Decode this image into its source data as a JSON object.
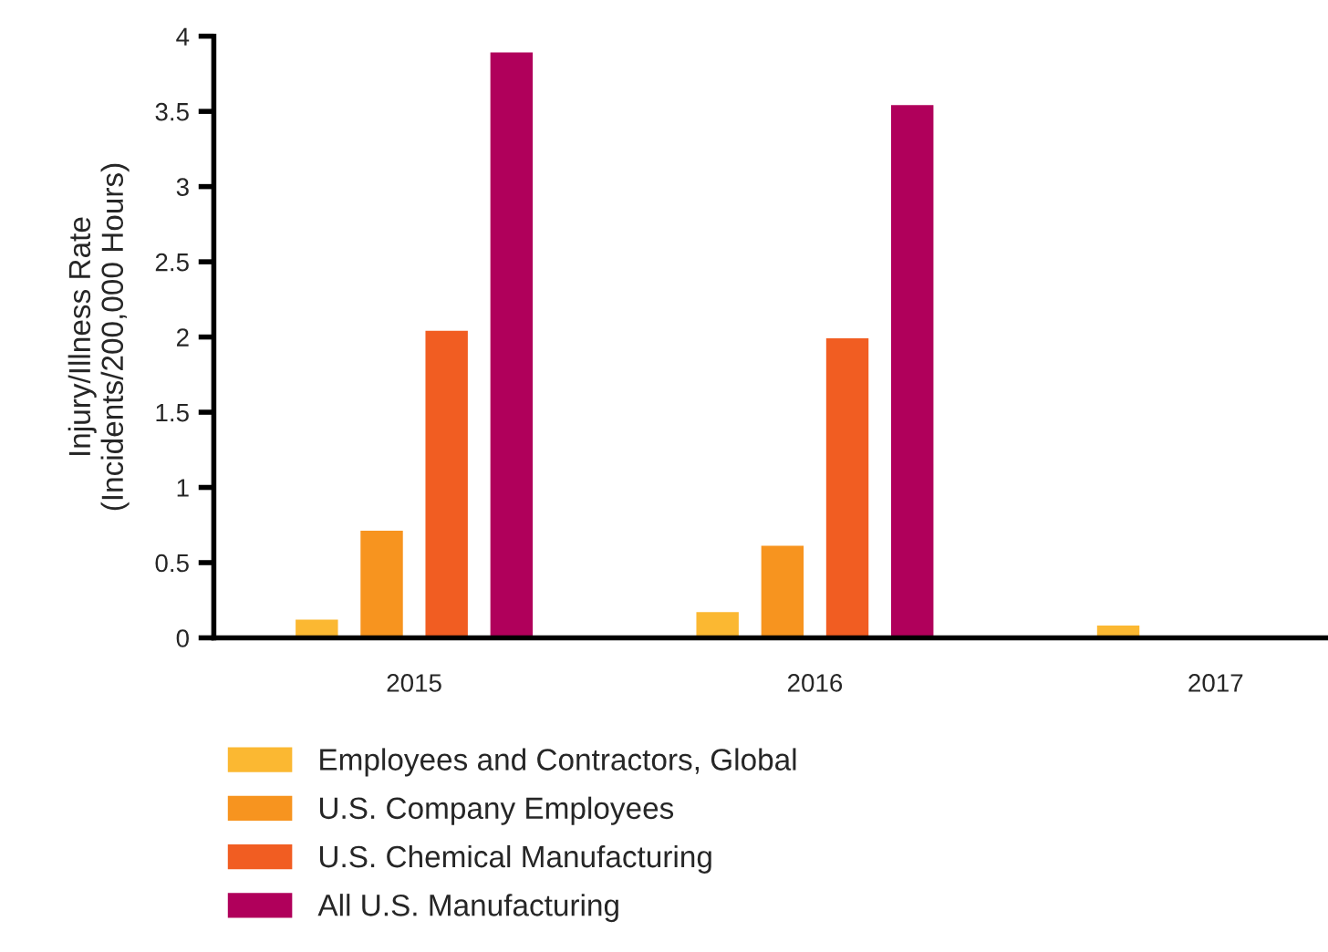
{
  "chart_data": {
    "type": "bar",
    "ylabel": "Injury/Illness Rate\n(Incidents/200,000 Hours)",
    "categories": [
      "2015",
      "2016",
      "2017"
    ],
    "series": [
      {
        "name": "Employees and Contractors, Global",
        "color": "#fbb832",
        "values": [
          0.13,
          0.18,
          0.09
        ]
      },
      {
        "name": "U.S. Company Employees",
        "color": "#f7941f",
        "values": [
          0.72,
          0.62,
          null
        ]
      },
      {
        "name": "U.S. Chemical Manufacturing",
        "color": "#f15d22",
        "values": [
          2.05,
          2.0,
          null
        ]
      },
      {
        "name": "All U.S. Manufacturing",
        "color": "#b0005b",
        "values": [
          3.9,
          3.55,
          null
        ]
      }
    ],
    "ylim": [
      0,
      4
    ],
    "yticks": [
      0,
      0.5,
      1,
      1.5,
      2,
      2.5,
      3,
      3.5,
      4
    ],
    "grid": false,
    "legend": "bottom"
  }
}
